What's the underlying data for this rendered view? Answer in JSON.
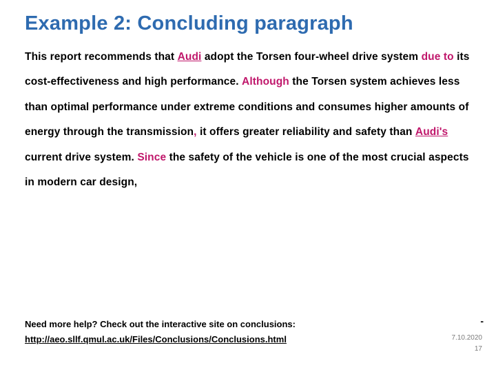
{
  "colors": {
    "title": "#2e6bb0",
    "accent": "#c0176b",
    "text": "#000000",
    "footer_meta": "#7a7a7a",
    "background": "#ffffff"
  },
  "title": "Example 2: Concluding paragraph",
  "paragraph": {
    "p1a": "This report recommends that ",
    "p1b": "Audi",
    "p1c": " adopt the Torsen four-wheel drive system ",
    "p1d": "due to",
    "p1e": " its cost-effectiveness and high performance. ",
    "p2a": "Although",
    "p2b": " the Torsen system achieves less than optimal performance under extreme conditions and consumes higher amounts of energy through the transmission",
    "p2c": ",",
    "p2d": " it offers greater reliability and safety than ",
    "p2e": "Audi's",
    "p2f": " current drive system. ",
    "p3a": "Since",
    "p3b": " the safety of the vehicle is one of the most crucial aspects in modern car design,"
  },
  "footer": {
    "line1": "Need more help? Check out the interactive site on conclusions:",
    "link": "http://aeo.sllf.qmul.ac.uk/Files/Conclusions/Conclusions.html"
  },
  "meta": {
    "date": "7.10.2020",
    "page": "17",
    "dash": "-"
  }
}
